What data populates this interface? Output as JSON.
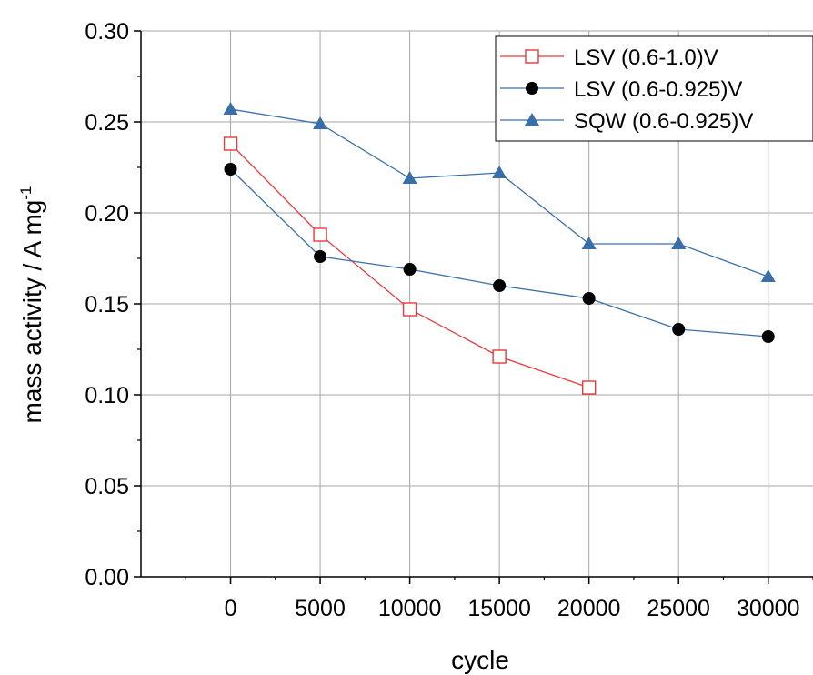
{
  "chart_data": {
    "type": "line",
    "xlabel": "cycle",
    "ylabel": {
      "main": "mass activity / A mg",
      "superscript": "-1"
    },
    "xlim": [
      -5000,
      32500
    ],
    "ylim": [
      0,
      0.3
    ],
    "xticks": [
      0,
      5000,
      10000,
      15000,
      20000,
      25000,
      30000
    ],
    "xtick_labels": [
      "0",
      "5000",
      "10000",
      "15000",
      "20000",
      "25000",
      "30000"
    ],
    "yticks": [
      0,
      0.05,
      0.1,
      0.15,
      0.2,
      0.25,
      0.3
    ],
    "ytick_labels": [
      "0.00",
      "0.05",
      "0.10",
      "0.15",
      "0.20",
      "0.25",
      "0.30"
    ],
    "grid": true,
    "legend_position": "top-right",
    "series": [
      {
        "name": "LSV (0.6-1.0)V",
        "color": "#e8393b",
        "marker": "open-square",
        "x": [
          0,
          5000,
          10000,
          15000,
          20000
        ],
        "y": [
          0.238,
          0.188,
          0.147,
          0.121,
          0.104
        ]
      },
      {
        "name": "LSV (0.6-0.925)V",
        "color": "#3a6ea8",
        "marker_color": "#000000",
        "marker": "filled-circle",
        "x": [
          0,
          5000,
          10000,
          15000,
          20000,
          25000,
          30000
        ],
        "y": [
          0.224,
          0.176,
          0.169,
          0.16,
          0.153,
          0.136,
          0.132
        ]
      },
      {
        "name": "SQW (0.6-0.925)V",
        "color": "#3a6ea8",
        "marker": "filled-triangle",
        "x": [
          0,
          5000,
          10000,
          15000,
          20000,
          25000,
          30000
        ],
        "y": [
          0.257,
          0.249,
          0.219,
          0.222,
          0.183,
          0.183,
          0.165
        ]
      }
    ]
  }
}
